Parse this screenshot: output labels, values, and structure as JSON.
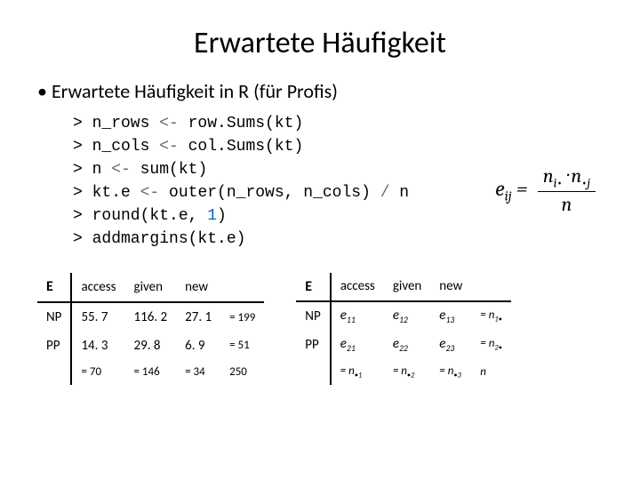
{
  "title": "Erwartete Häufigkeit",
  "bullet": "Erwartete Häufigkeit in R (für Profis)",
  "code": {
    "l1a": "> n_rows ",
    "l1b": "<-",
    "l1c": " row.Sums(kt)",
    "l2a": "> n_cols ",
    "l2b": "<-",
    "l2c": " col.Sums(kt)",
    "l3a": "> n ",
    "l3b": "<-",
    "l3c": " sum(kt)",
    "l4a": "> kt.e ",
    "l4b": "<-",
    "l4c": " outer(n_rows, n_cols) ",
    "l4d": "/",
    "l4e": " n",
    "l5a": "> round(kt.e, ",
    "l5b": "1",
    "l5c": ")",
    "l6a": "> addmargins(kt.e)"
  },
  "formula": {
    "lhs_e": "e",
    "lhs_ij": "ij",
    "eq": " = ",
    "top_ni": "n",
    "top_i": "i",
    "top_dot1": "•",
    "top_cdot": " · ",
    "top_n2": "n",
    "top_dot2": "•",
    "top_j": "j",
    "den": "n"
  },
  "table1": {
    "corner": "E",
    "h1": "access",
    "h2": "given",
    "h3": "new",
    "r1": "NP",
    "r1c1": "55. 7",
    "r1c2": "116. 2",
    "r1c3": "27. 1",
    "r1s": "= 199",
    "r2": "PP",
    "r2c1": "14. 3",
    "r2c2": "29. 8",
    "r2c3": "6. 9",
    "r2s": "= 51",
    "s1": "= 70",
    "s2": "= 146",
    "s3": "= 34",
    "tot": "250"
  },
  "table2": {
    "corner": "E",
    "h1": "access",
    "h2": "given",
    "h3": "new",
    "r1": "NP",
    "r2": "PP",
    "e": "e",
    "n": "n",
    "s11": "11",
    "s12": "12",
    "s13": "13",
    "s21": "21",
    "s22": "22",
    "s23": "23",
    "row1sum_sub": "1",
    "row2sum_sub": "2",
    "col1sum_sub": "1",
    "col2sum_sub": "2",
    "col3sum_sub": "3",
    "dot": "•",
    "eqn_prefix": "= n",
    "grand": "n"
  }
}
